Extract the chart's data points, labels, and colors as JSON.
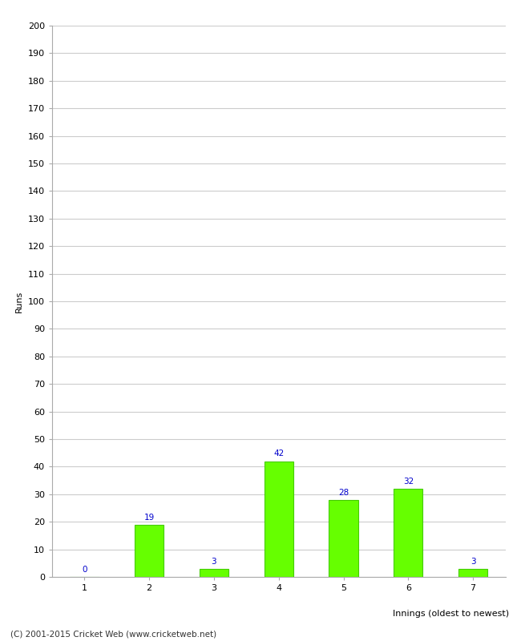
{
  "categories": [
    1,
    2,
    3,
    4,
    5,
    6,
    7
  ],
  "values": [
    0,
    19,
    3,
    42,
    28,
    32,
    3
  ],
  "bar_color": "#66ff00",
  "bar_edgecolor": "#44cc00",
  "xlabel": "Innings (oldest to newest)",
  "ylabel": "Runs",
  "ylim": [
    0,
    200
  ],
  "yticks": [
    0,
    10,
    20,
    30,
    40,
    50,
    60,
    70,
    80,
    90,
    100,
    110,
    120,
    130,
    140,
    150,
    160,
    170,
    180,
    190,
    200
  ],
  "label_color": "#0000cc",
  "label_fontsize": 7.5,
  "axis_fontsize": 8,
  "tick_fontsize": 8,
  "footer": "(C) 2001-2015 Cricket Web (www.cricketweb.net)",
  "footer_fontsize": 7.5,
  "background_color": "#ffffff",
  "grid_color": "#cccccc",
  "bar_width": 0.45
}
